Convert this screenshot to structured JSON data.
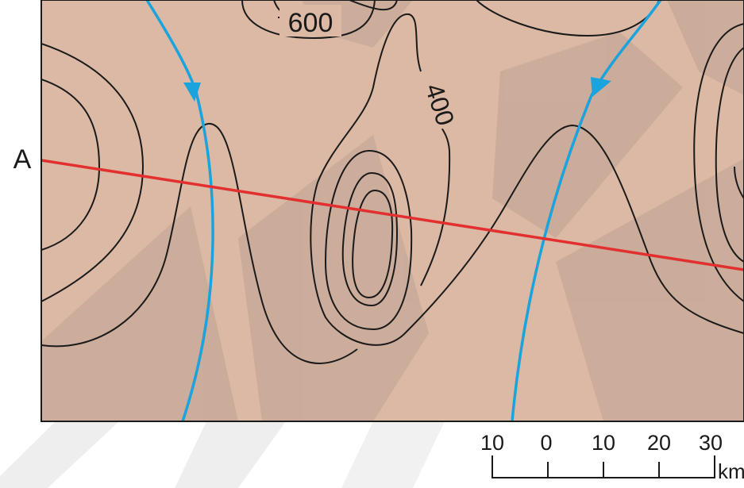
{
  "map": {
    "section_label_left": "A",
    "contour_labels": {
      "high": "600",
      "mid": "400"
    },
    "colors": {
      "background_fill": "#dcb9a4",
      "watermark": "#c8a898",
      "contour": "#1a1a1a",
      "river": "#1ba3dd",
      "section_line": "#e23030"
    }
  },
  "scale_bar": {
    "ticks": [
      "10",
      "0",
      "10",
      "20",
      "30"
    ],
    "unit": "km"
  }
}
